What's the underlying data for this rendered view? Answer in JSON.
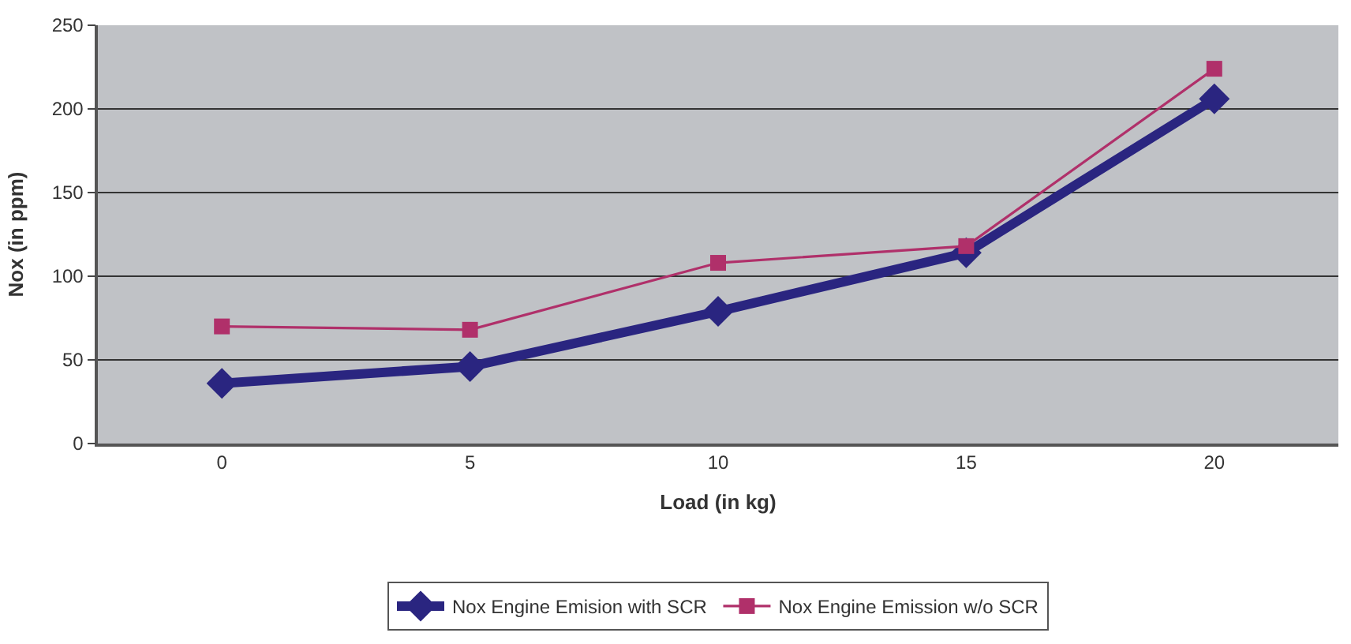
{
  "chart_data": {
    "type": "line",
    "xlabel": "Load (in kg)",
    "ylabel": "Nox (in ppm)",
    "categories": [
      "0",
      "5",
      "10",
      "15",
      "20"
    ],
    "series": [
      {
        "name": "Nox Engine Emision with SCR",
        "color": "#2a2580",
        "marker": "diamond",
        "values": [
          36,
          46,
          79,
          114,
          206
        ]
      },
      {
        "name": "Nox Engine Emission w/o SCR",
        "color": "#b0306a",
        "marker": "square",
        "values": [
          70,
          68,
          108,
          118,
          224
        ]
      }
    ],
    "ylim": [
      0,
      250
    ],
    "yticks": [
      0,
      50,
      100,
      150,
      200,
      250
    ],
    "grid": "y",
    "legend": "bottom"
  }
}
